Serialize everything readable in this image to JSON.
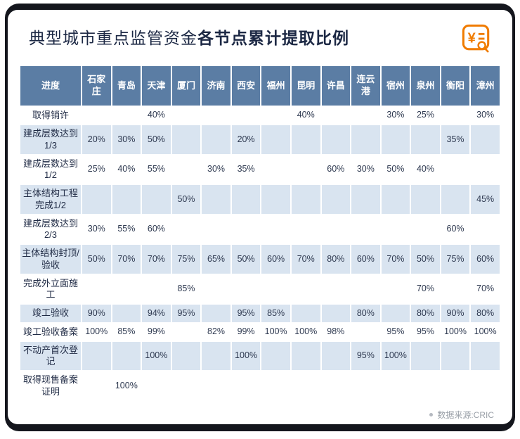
{
  "colors": {
    "header_blue": "#5b7da4",
    "row_blue": "#d9e4f0",
    "accent_orange": "#f07c00",
    "ink": "#1c2844"
  },
  "title": {
    "regular": "典型城市重点监管资金",
    "bold": "各节点累计提取比例"
  },
  "icon": {
    "symbol": "¥"
  },
  "chart_data": {
    "type": "table",
    "title": "典型城市重点监管资金各节点累计提取比例",
    "corner_header": "进度",
    "city_columns": [
      "石家庄",
      "青岛",
      "天津",
      "厦门",
      "济南",
      "西安",
      "福州",
      "昆明",
      "许昌",
      "连云\n港",
      "宿州",
      "泉州",
      "衡阳",
      "漳州"
    ],
    "milestone_rows": [
      {
        "label": "取得销许",
        "values": [
          "",
          "",
          "40%",
          "",
          "",
          "",
          "",
          "40%",
          "",
          "",
          "30%",
          "25%",
          "",
          "30%"
        ]
      },
      {
        "label": "建成层数达到1/3",
        "values": [
          "20%",
          "30%",
          "50%",
          "",
          "",
          "20%",
          "",
          "",
          "",
          "",
          "",
          "",
          "35%",
          ""
        ]
      },
      {
        "label": "建成层数达到1/2",
        "values": [
          "25%",
          "40%",
          "55%",
          "",
          "30%",
          "35%",
          "",
          "",
          "60%",
          "30%",
          "50%",
          "40%",
          "",
          ""
        ]
      },
      {
        "label": "主体结构工程完成1/2",
        "values": [
          "",
          "",
          "",
          "50%",
          "",
          "",
          "",
          "",
          "",
          "",
          "",
          "",
          "",
          "45%"
        ]
      },
      {
        "label": "建成层数达到2/3",
        "values": [
          "30%",
          "55%",
          "60%",
          "",
          "",
          "",
          "",
          "",
          "",
          "",
          "",
          "",
          "60%",
          ""
        ]
      },
      {
        "label": "主体结构封顶/验收",
        "values": [
          "50%",
          "70%",
          "70%",
          "75%",
          "65%",
          "50%",
          "60%",
          "70%",
          "80%",
          "60%",
          "70%",
          "50%",
          "75%",
          "60%"
        ]
      },
      {
        "label": "完成外立面施工",
        "values": [
          "",
          "",
          "",
          "85%",
          "",
          "",
          "",
          "",
          "",
          "",
          "",
          "70%",
          "",
          "70%"
        ]
      },
      {
        "label": "竣工验收",
        "values": [
          "90%",
          "",
          "94%",
          "95%",
          "",
          "95%",
          "85%",
          "",
          "",
          "80%",
          "",
          "80%",
          "90%",
          "80%"
        ]
      },
      {
        "label": "竣工验收备案",
        "values": [
          "100%",
          "85%",
          "99%",
          "",
          "82%",
          "99%",
          "100%",
          "100%",
          "98%",
          "",
          "95%",
          "95%",
          "100%",
          "100%"
        ]
      },
      {
        "label": "不动产首次登记",
        "values": [
          "",
          "",
          "100%",
          "",
          "",
          "100%",
          "",
          "",
          "",
          "95%",
          "100%",
          "",
          "",
          ""
        ]
      },
      {
        "label": "取得现售备案证明",
        "values": [
          "",
          "100%",
          "",
          "",
          "",
          "",
          "",
          "",
          "",
          "",
          "",
          "",
          "",
          ""
        ]
      }
    ]
  },
  "footer": {
    "source": "数据来源:CRIC"
  }
}
